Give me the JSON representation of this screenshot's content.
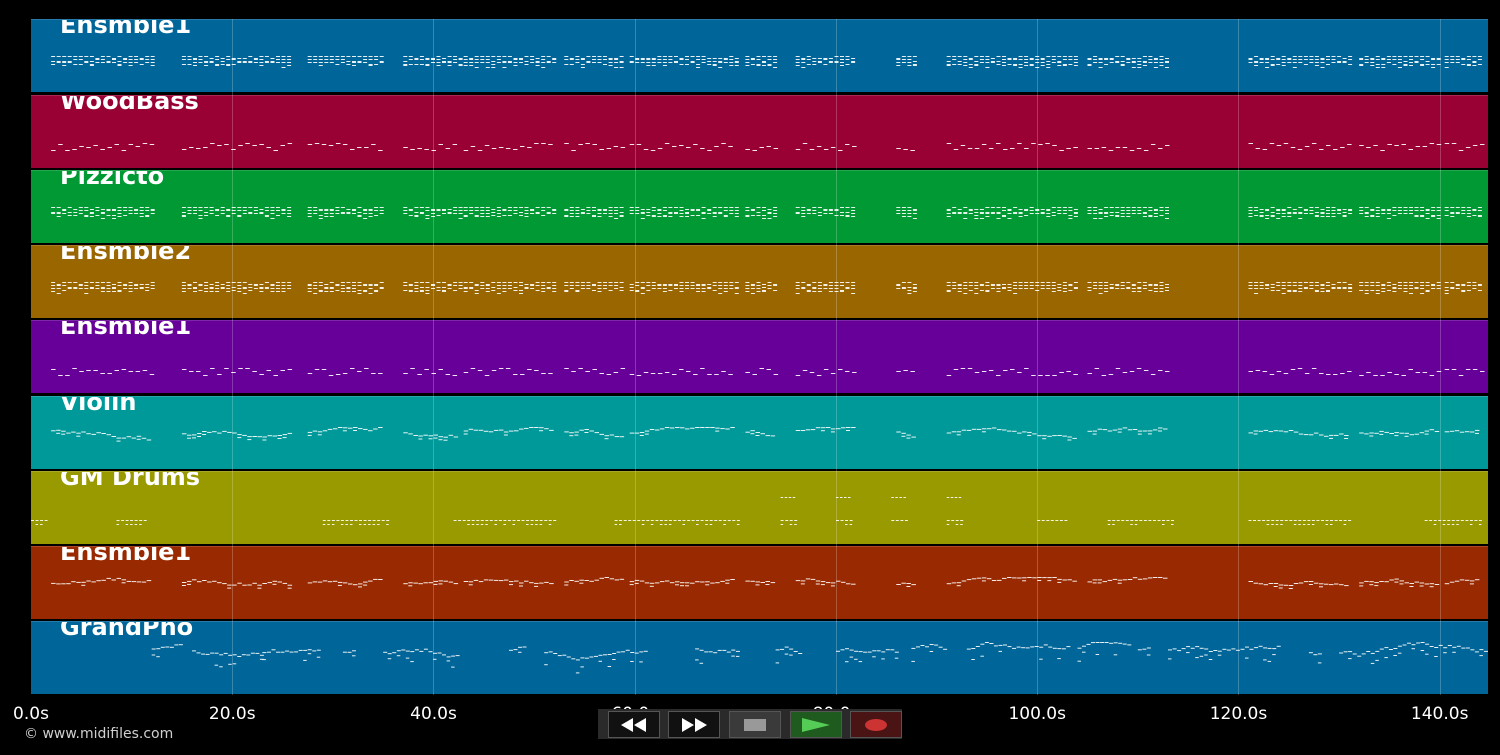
{
  "tracks": [
    {
      "name": "Ensmble1",
      "color": "#006699",
      "pattern": "chords"
    },
    {
      "name": "WoodBass",
      "color": "#990033",
      "pattern": "bass"
    },
    {
      "name": "Pizzicto",
      "color": "#009933",
      "pattern": "chords"
    },
    {
      "name": "Ensmble2",
      "color": "#996600",
      "pattern": "chords"
    },
    {
      "name": "Ensmble1",
      "color": "#660099",
      "pattern": "bass"
    },
    {
      "name": "Violin",
      "color": "#009999",
      "pattern": "melody"
    },
    {
      "name": "GM Drums",
      "color": "#999900",
      "pattern": "drums"
    },
    {
      "name": "Ensmble1",
      "color": "#992900",
      "pattern": "melody"
    },
    {
      "name": "GrandPno",
      "color": "#006699",
      "pattern": "piano"
    }
  ],
  "timeline": {
    "ticks": [
      "0.0s",
      "20.0s",
      "40.0s",
      "60.0s",
      "80.0s",
      "100.0s",
      "120.0s",
      "140.0s"
    ],
    "tick_values": [
      0,
      20,
      40,
      60,
      80,
      100,
      120,
      140
    ],
    "max_seconds": 144.8
  },
  "copyright": "© www.midifiles.com",
  "transport": {
    "rewind": "rewind-icon",
    "fast_forward": "fast-forward-icon",
    "stop": "stop-icon",
    "play": "play-icon",
    "record": "record-icon",
    "colors": {
      "play": "#55cc55",
      "record": "#cc3333",
      "stop": "#999999"
    }
  }
}
